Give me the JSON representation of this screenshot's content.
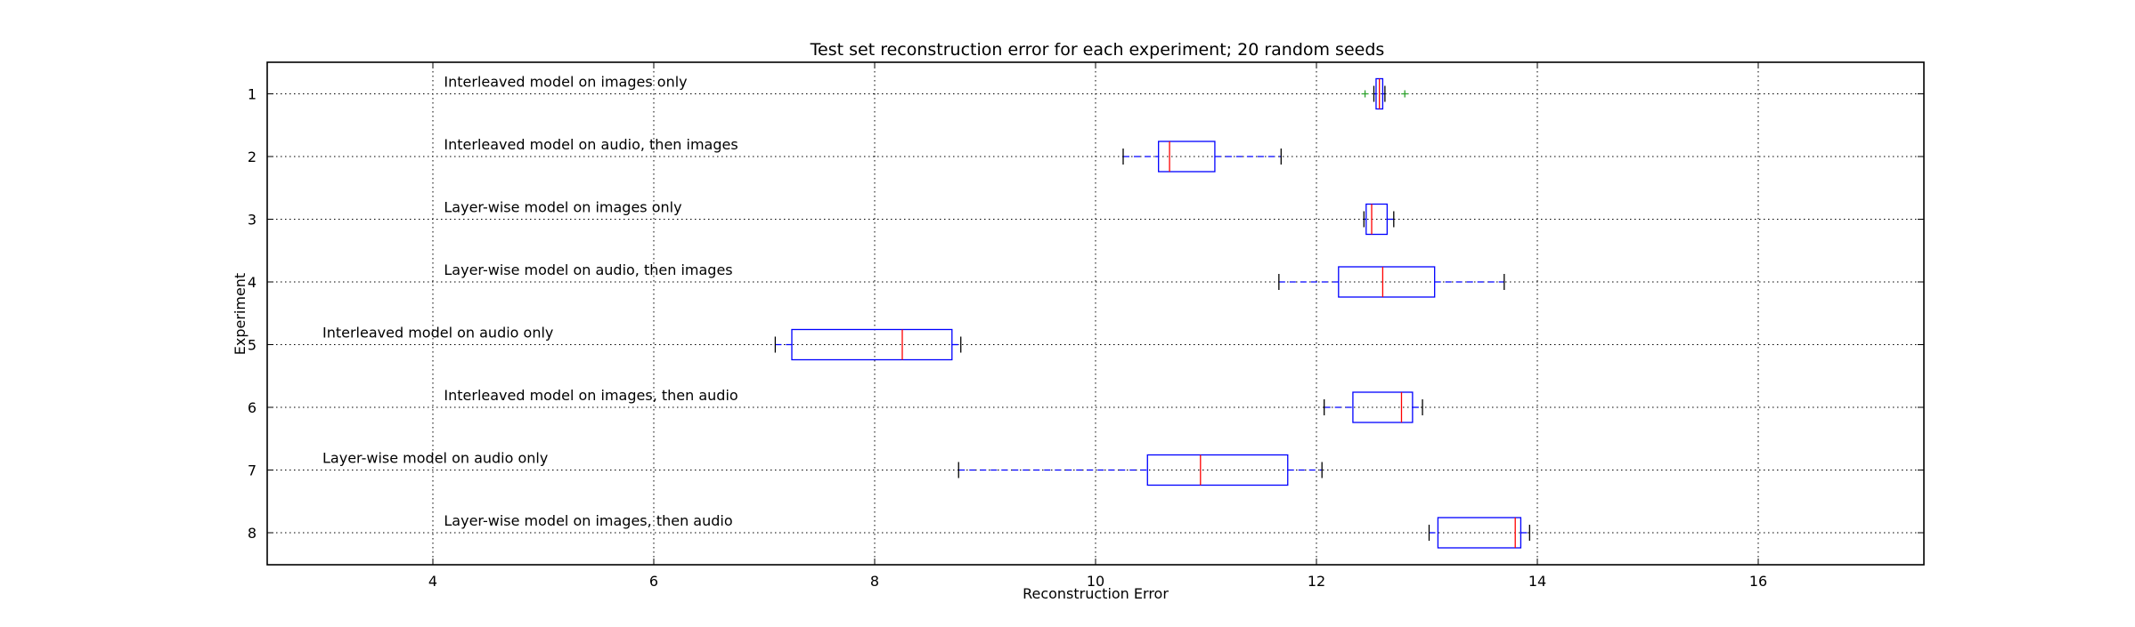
{
  "chart_data": {
    "type": "boxplot",
    "orientation": "horizontal",
    "title": "Test set reconstruction error for each experiment; 20 random seeds",
    "xlabel": "Reconstruction Error",
    "ylabel": "Experiment",
    "xlim": [
      2.5,
      17.5
    ],
    "xticks": [
      4,
      6,
      8,
      10,
      12,
      14,
      16
    ],
    "yticks": [
      1,
      2,
      3,
      4,
      5,
      6,
      7,
      8
    ],
    "grid": true,
    "box_color": "#0000ff",
    "median_color": "#ff0000",
    "whisker_color": "#0000ff",
    "cap_color": "#000000",
    "flier_color": "#2ca02c",
    "experiments": [
      {
        "id": 1,
        "label": "Interleaved model on images only",
        "label_x": 4.1,
        "whislo": 12.52,
        "q1": 12.54,
        "med": 12.57,
        "q3": 12.6,
        "whishi": 12.62,
        "fliers": [
          12.44,
          12.8
        ]
      },
      {
        "id": 2,
        "label": "Interleaved model on audio, then images",
        "label_x": 4.1,
        "whislo": 10.25,
        "q1": 10.57,
        "med": 10.67,
        "q3": 11.08,
        "whishi": 11.68,
        "fliers": []
      },
      {
        "id": 3,
        "label": "Layer-wise model on images only",
        "label_x": 4.1,
        "whislo": 12.43,
        "q1": 12.45,
        "med": 12.5,
        "q3": 12.64,
        "whishi": 12.7,
        "fliers": []
      },
      {
        "id": 4,
        "label": "Layer-wise model on audio, then images",
        "label_x": 4.1,
        "whislo": 11.66,
        "q1": 12.2,
        "med": 12.6,
        "q3": 13.07,
        "whishi": 13.7,
        "fliers": []
      },
      {
        "id": 5,
        "label": "Interleaved model on audio only",
        "label_x": 3.0,
        "whislo": 7.1,
        "q1": 7.25,
        "med": 8.25,
        "q3": 8.7,
        "whishi": 8.78,
        "fliers": []
      },
      {
        "id": 6,
        "label": "Interleaved model on images, then audio",
        "label_x": 4.1,
        "whislo": 12.07,
        "q1": 12.33,
        "med": 12.77,
        "q3": 12.87,
        "whishi": 12.96,
        "fliers": []
      },
      {
        "id": 7,
        "label": "Layer-wise model on audio only",
        "label_x": 3.0,
        "whislo": 8.76,
        "q1": 10.47,
        "med": 10.95,
        "q3": 11.74,
        "whishi": 12.05,
        "fliers": []
      },
      {
        "id": 8,
        "label": "Layer-wise model on images, then audio",
        "label_x": 4.1,
        "whislo": 13.02,
        "q1": 13.1,
        "med": 13.8,
        "q3": 13.85,
        "whishi": 13.93,
        "fliers": []
      }
    ]
  }
}
